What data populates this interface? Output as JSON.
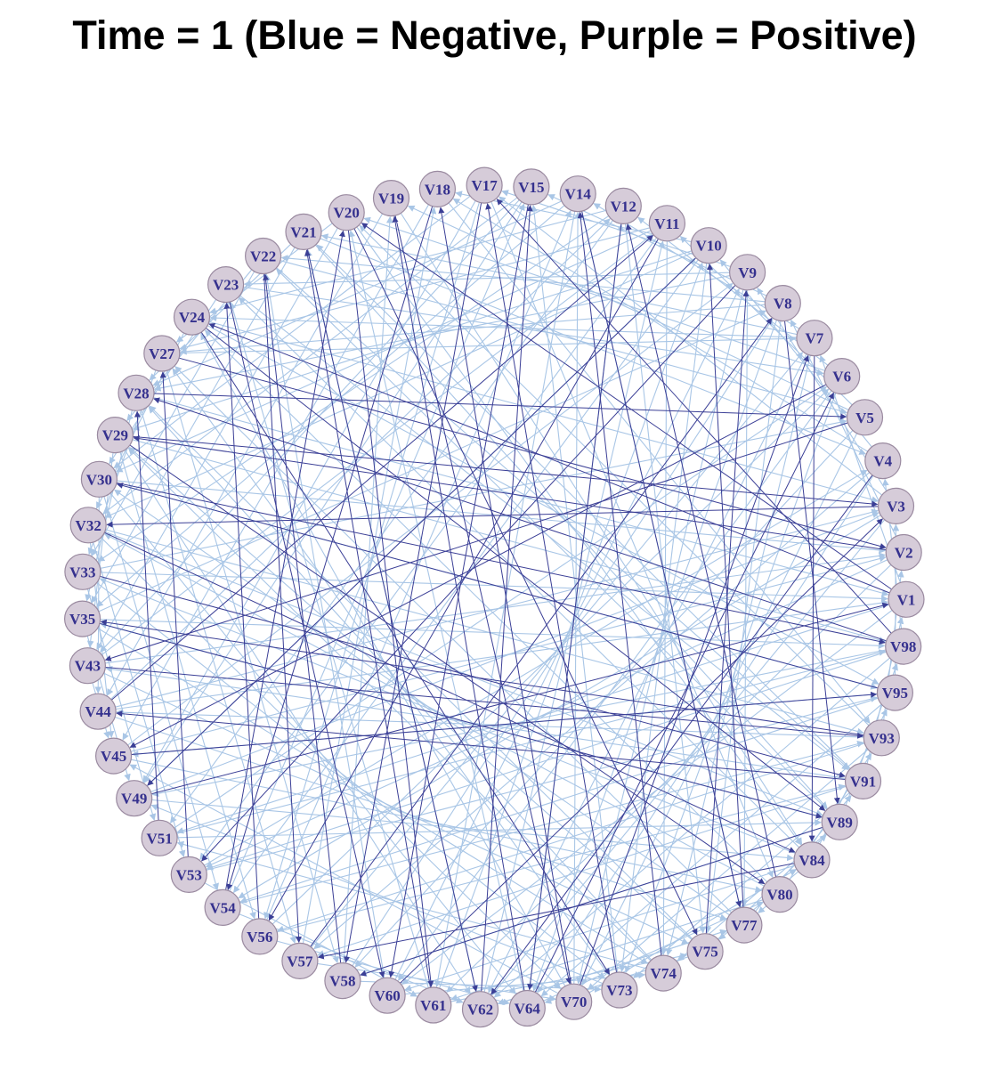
{
  "title": "Time = 1 (Blue = Negative, Purple = Positive)",
  "colors": {
    "negative_edge": "#a9c6e6",
    "positive_edge": "#3b3f96",
    "node_fill": "#d6ccd9",
    "node_stroke": "#9a8aa0",
    "label": "#35318e"
  },
  "nodes": [
    "V1",
    "V2",
    "V3",
    "V4",
    "V5",
    "V6",
    "V7",
    "V8",
    "V9",
    "V10",
    "V11",
    "V12",
    "V14",
    "V15",
    "V17",
    "V18",
    "V19",
    "V20",
    "V21",
    "V22",
    "V23",
    "V24",
    "V27",
    "V28",
    "V29",
    "V30",
    "V32",
    "V33",
    "V35",
    "V43",
    "V44",
    "V45",
    "V49",
    "V51",
    "V53",
    "V54",
    "V56",
    "V57",
    "V58",
    "V60",
    "V61",
    "V62",
    "V64",
    "V70",
    "V73",
    "V74",
    "V75",
    "V77",
    "V80",
    "V84",
    "V89",
    "V91",
    "V93",
    "V95",
    "V98"
  ],
  "edges": {
    "negative": [
      [
        "V17",
        "V56"
      ],
      [
        "V15",
        "V49"
      ],
      [
        "V14",
        "V61"
      ],
      [
        "V20",
        "V84"
      ],
      [
        "V22",
        "V91"
      ],
      [
        "V24",
        "V3"
      ],
      [
        "V24",
        "V95"
      ],
      [
        "V27",
        "V7"
      ],
      [
        "V28",
        "V1"
      ],
      [
        "V29",
        "V98"
      ],
      [
        "V30",
        "V2"
      ],
      [
        "V32",
        "V89"
      ],
      [
        "V33",
        "V5"
      ],
      [
        "V35",
        "V8"
      ],
      [
        "V43",
        "V11"
      ],
      [
        "V44",
        "V12"
      ],
      [
        "V45",
        "V9"
      ],
      [
        "V49",
        "V10"
      ],
      [
        "V51",
        "V6"
      ],
      [
        "V53",
        "V4"
      ],
      [
        "V54",
        "V15"
      ],
      [
        "V56",
        "V14"
      ],
      [
        "V57",
        "V18"
      ],
      [
        "V58",
        "V19"
      ],
      [
        "V60",
        "V22"
      ],
      [
        "V61",
        "V23"
      ],
      [
        "V62",
        "V21"
      ],
      [
        "V64",
        "V20"
      ],
      [
        "V70",
        "V24"
      ],
      [
        "V73",
        "V27"
      ],
      [
        "V74",
        "V28"
      ],
      [
        "V75",
        "V29"
      ],
      [
        "V77",
        "V30"
      ],
      [
        "V80",
        "V32"
      ],
      [
        "V84",
        "V33"
      ],
      [
        "V89",
        "V35"
      ],
      [
        "V91",
        "V43"
      ],
      [
        "V93",
        "V44"
      ],
      [
        "V95",
        "V45"
      ],
      [
        "V98",
        "V49"
      ],
      [
        "V1",
        "V51"
      ],
      [
        "V2",
        "V53"
      ],
      [
        "V3",
        "V54"
      ],
      [
        "V4",
        "V57"
      ],
      [
        "V5",
        "V58"
      ],
      [
        "V6",
        "V60"
      ],
      [
        "V7",
        "V62"
      ],
      [
        "V8",
        "V64"
      ],
      [
        "V9",
        "V70"
      ],
      [
        "V10",
        "V73"
      ],
      [
        "V11",
        "V74"
      ],
      [
        "V12",
        "V75"
      ],
      [
        "V14",
        "V77"
      ],
      [
        "V17",
        "V80"
      ],
      [
        "V18",
        "V93"
      ],
      [
        "V19",
        "V84"
      ],
      [
        "V21",
        "V89"
      ],
      [
        "V23",
        "V91"
      ],
      [
        "V17",
        "V30"
      ],
      [
        "V15",
        "V32"
      ],
      [
        "V14",
        "V28"
      ],
      [
        "V12",
        "V24"
      ],
      [
        "V11",
        "V27"
      ],
      [
        "V10",
        "V29"
      ],
      [
        "V9",
        "V23"
      ],
      [
        "V8",
        "V22"
      ],
      [
        "V7",
        "V21"
      ],
      [
        "V6",
        "V20"
      ],
      [
        "V5",
        "V19"
      ],
      [
        "V4",
        "V18"
      ],
      [
        "V3",
        "V17"
      ],
      [
        "V98",
        "V53"
      ],
      [
        "V95",
        "V54"
      ],
      [
        "V93",
        "V56"
      ],
      [
        "V91",
        "V57"
      ],
      [
        "V89",
        "V58"
      ],
      [
        "V84",
        "V60"
      ],
      [
        "V80",
        "V61"
      ],
      [
        "V77",
        "V62"
      ],
      [
        "V75",
        "V64"
      ],
      [
        "V74",
        "V51"
      ],
      [
        "V73",
        "V49"
      ],
      [
        "V70",
        "V45"
      ],
      [
        "V29",
        "V62"
      ],
      [
        "V30",
        "V64"
      ],
      [
        "V32",
        "V70"
      ],
      [
        "V33",
        "V73"
      ],
      [
        "V35",
        "V74"
      ],
      [
        "V43",
        "V75"
      ],
      [
        "V44",
        "V77"
      ],
      [
        "V45",
        "V80"
      ],
      [
        "V49",
        "V84"
      ],
      [
        "V51",
        "V89"
      ],
      [
        "V1",
        "V7"
      ],
      [
        "V2",
        "V8"
      ],
      [
        "V3",
        "V9"
      ],
      [
        "V4",
        "V10"
      ],
      [
        "V5",
        "V11"
      ],
      [
        "V6",
        "V12"
      ],
      [
        "V7",
        "V14"
      ],
      [
        "V8",
        "V15"
      ],
      [
        "V9",
        "V17"
      ],
      [
        "V10",
        "V18"
      ],
      [
        "V20",
        "V27"
      ],
      [
        "V21",
        "V28"
      ],
      [
        "V22",
        "V29"
      ],
      [
        "V23",
        "V30"
      ],
      [
        "V24",
        "V32"
      ],
      [
        "V27",
        "V33"
      ],
      [
        "V28",
        "V35"
      ],
      [
        "V29",
        "V43"
      ],
      [
        "V30",
        "V44"
      ],
      [
        "V32",
        "V45"
      ],
      [
        "V53",
        "V61"
      ],
      [
        "V54",
        "V62"
      ],
      [
        "V56",
        "V64"
      ],
      [
        "V57",
        "V70"
      ],
      [
        "V58",
        "V73"
      ],
      [
        "V60",
        "V74"
      ],
      [
        "V61",
        "V75"
      ],
      [
        "V62",
        "V77"
      ],
      [
        "V64",
        "V80"
      ],
      [
        "V70",
        "V84"
      ],
      [
        "V84",
        "V95"
      ],
      [
        "V89",
        "V98"
      ],
      [
        "V91",
        "V1"
      ],
      [
        "V93",
        "V2"
      ],
      [
        "V95",
        "V3"
      ],
      [
        "V98",
        "V4"
      ],
      [
        "V77",
        "V91"
      ],
      [
        "V80",
        "V93"
      ],
      [
        "V75",
        "V89"
      ],
      [
        "V33",
        "V1"
      ],
      [
        "V43",
        "V2"
      ],
      [
        "V44",
        "V3"
      ],
      [
        "V35",
        "V98"
      ],
      [
        "V30",
        "V95"
      ],
      [
        "V32",
        "V93"
      ],
      [
        "V22",
        "V5"
      ],
      [
        "V23",
        "V6"
      ],
      [
        "V21",
        "V4"
      ],
      [
        "V60",
        "V9"
      ],
      [
        "V61",
        "V10"
      ],
      [
        "V62",
        "V11"
      ],
      [
        "V64",
        "V12"
      ],
      [
        "V58",
        "V8"
      ],
      [
        "V57",
        "V7"
      ],
      [
        "V56",
        "V6"
      ],
      [
        "V70",
        "V14"
      ],
      [
        "V73",
        "V15"
      ],
      [
        "V18",
        "V45"
      ],
      [
        "V19",
        "V44"
      ],
      [
        "V20",
        "V43"
      ],
      [
        "V21",
        "V35"
      ],
      [
        "V22",
        "V33"
      ],
      [
        "V17",
        "V49"
      ],
      [
        "V12",
        "V51"
      ],
      [
        "V11",
        "V53"
      ],
      [
        "V10",
        "V54"
      ],
      [
        "V93",
        "V20"
      ],
      [
        "V91",
        "V21"
      ],
      [
        "V89",
        "V22"
      ],
      [
        "V84",
        "V23"
      ],
      [
        "V80",
        "V24"
      ],
      [
        "V77",
        "V27"
      ],
      [
        "V75",
        "V28"
      ],
      [
        "V74",
        "V29"
      ],
      [
        "V1",
        "V60"
      ],
      [
        "V2",
        "V61"
      ],
      [
        "V3",
        "V62"
      ],
      [
        "V4",
        "V64"
      ],
      [
        "V5",
        "V70"
      ],
      [
        "V6",
        "V73"
      ],
      [
        "V7",
        "V74"
      ],
      [
        "V8",
        "V75"
      ],
      [
        "V9",
        "V77"
      ],
      [
        "V27",
        "V58"
      ],
      [
        "V28",
        "V57"
      ],
      [
        "V29",
        "V56"
      ],
      [
        "V30",
        "V54"
      ],
      [
        "V32",
        "V53"
      ],
      [
        "V33",
        "V51"
      ],
      [
        "V35",
        "V49"
      ],
      [
        "V43",
        "V45"
      ],
      [
        "V14",
        "V35"
      ],
      [
        "V15",
        "V43"
      ],
      [
        "V12",
        "V33"
      ],
      [
        "V11",
        "V30"
      ],
      [
        "V10",
        "V32"
      ],
      [
        "V9",
        "V28"
      ],
      [
        "V8",
        "V27"
      ],
      [
        "V7",
        "V24"
      ],
      [
        "V98",
        "V62"
      ],
      [
        "V95",
        "V64"
      ],
      [
        "V93",
        "V70"
      ],
      [
        "V91",
        "V73"
      ],
      [
        "V89",
        "V74"
      ],
      [
        "V84",
        "V75"
      ],
      [
        "V80",
        "V77"
      ],
      [
        "V44",
        "V1"
      ],
      [
        "V45",
        "V2"
      ],
      [
        "V49",
        "V3"
      ],
      [
        "V51",
        "V98"
      ],
      [
        "V53",
        "V95"
      ],
      [
        "V54",
        "V93"
      ],
      [
        "V56",
        "V91"
      ]
    ],
    "positive": [
      [
        "V17",
        "V58"
      ],
      [
        "V19",
        "V70"
      ],
      [
        "V21",
        "V62"
      ],
      [
        "V14",
        "V77"
      ],
      [
        "V12",
        "V64"
      ],
      [
        "V10",
        "V49"
      ],
      [
        "V8",
        "V89"
      ],
      [
        "V7",
        "V84"
      ],
      [
        "V24",
        "V89"
      ],
      [
        "V29",
        "V3"
      ],
      [
        "V30",
        "V98"
      ],
      [
        "V32",
        "V84"
      ],
      [
        "V23",
        "V60"
      ],
      [
        "V22",
        "V57"
      ],
      [
        "V20",
        "V61"
      ],
      [
        "V11",
        "V56"
      ],
      [
        "V9",
        "V53"
      ],
      [
        "V6",
        "V45"
      ],
      [
        "V5",
        "V43"
      ],
      [
        "V3",
        "V32"
      ],
      [
        "V2",
        "V29"
      ],
      [
        "V1",
        "V24"
      ],
      [
        "V98",
        "V28"
      ],
      [
        "V95",
        "V30"
      ],
      [
        "V93",
        "V35"
      ],
      [
        "V91",
        "V44"
      ],
      [
        "V80",
        "V12"
      ],
      [
        "V77",
        "V10"
      ],
      [
        "V75",
        "V9"
      ],
      [
        "V74",
        "V14"
      ],
      [
        "V73",
        "V17"
      ],
      [
        "V70",
        "V18"
      ],
      [
        "V64",
        "V19"
      ],
      [
        "V61",
        "V21"
      ],
      [
        "V58",
        "V22"
      ],
      [
        "V56",
        "V23"
      ],
      [
        "V54",
        "V20"
      ],
      [
        "V53",
        "V27"
      ],
      [
        "V51",
        "V28"
      ],
      [
        "V49",
        "V1"
      ],
      [
        "V45",
        "V95"
      ],
      [
        "V43",
        "V93"
      ],
      [
        "V33",
        "V91"
      ],
      [
        "V35",
        "V89"
      ],
      [
        "V27",
        "V2"
      ],
      [
        "V28",
        "V5"
      ],
      [
        "V18",
        "V54"
      ],
      [
        "V15",
        "V60"
      ],
      [
        "V4",
        "V62"
      ],
      [
        "V84",
        "V57"
      ],
      [
        "V89",
        "V58"
      ],
      [
        "V62",
        "V15"
      ],
      [
        "V20",
        "V75"
      ],
      [
        "V24",
        "V73"
      ],
      [
        "V29",
        "V80"
      ],
      [
        "V44",
        "V11"
      ],
      [
        "V57",
        "V8"
      ],
      [
        "V60",
        "V3"
      ],
      [
        "V70",
        "V7"
      ],
      [
        "V64",
        "V6"
      ],
      [
        "V98",
        "V17"
      ],
      [
        "V1",
        "V20"
      ]
    ]
  }
}
